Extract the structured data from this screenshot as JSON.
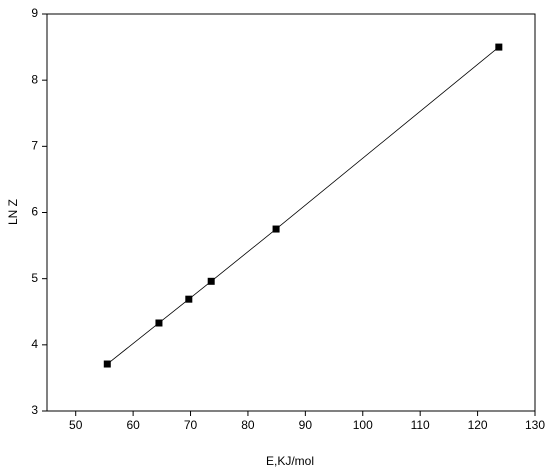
{
  "chart_data": {
    "type": "scatter",
    "xlabel": "E,KJ/mol",
    "ylabel": "LN Z",
    "x": [
      55.5,
      64.5,
      69.7,
      73.6,
      84.9,
      123.7
    ],
    "series": [
      {
        "color": "#000000",
        "values": [
          3.71,
          4.33,
          4.69,
          4.96,
          5.75,
          8.5
        ]
      }
    ],
    "connect": true,
    "xlim": [
      45,
      130
    ],
    "xticks": [
      50,
      60,
      70,
      80,
      90,
      100,
      110,
      120,
      130
    ],
    "ylim": [
      3,
      9
    ],
    "yticks": [
      3,
      4,
      5,
      6,
      7,
      8,
      9
    ]
  }
}
